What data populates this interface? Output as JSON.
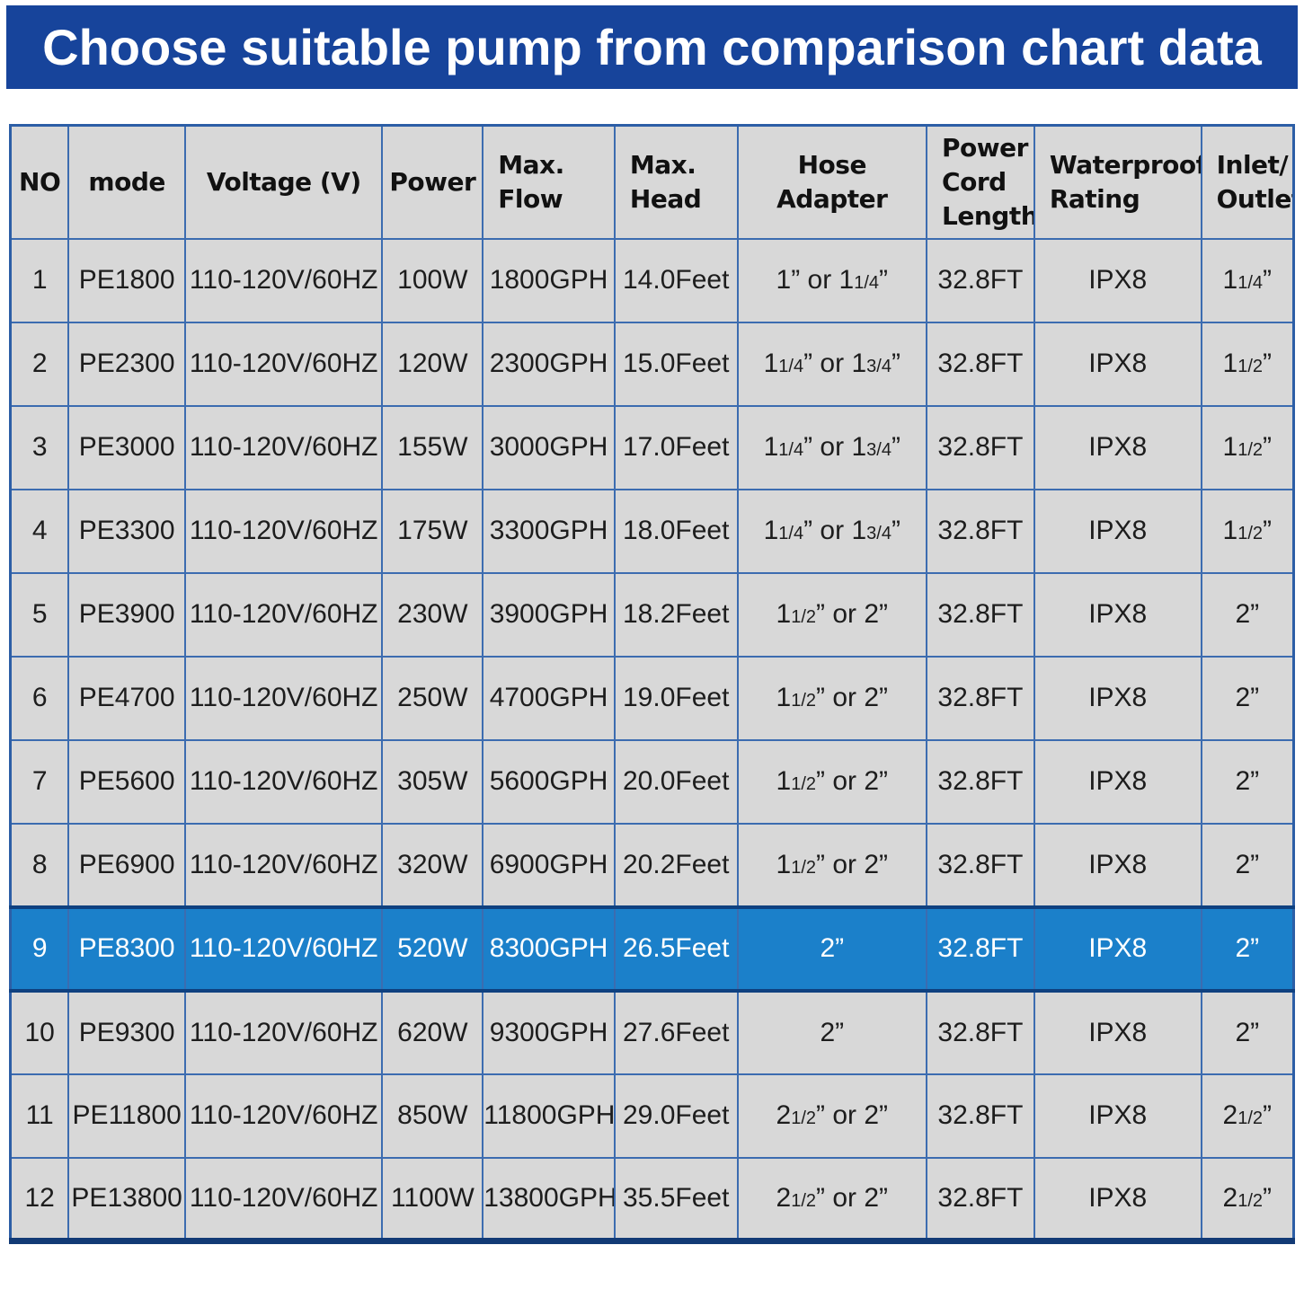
{
  "banner": {
    "title": "Choose suitable pump from comparison chart data"
  },
  "colors": {
    "banner_bg": "#17449b",
    "highlight_bg": "#1b80ca",
    "highlight_border": "#0f4180",
    "cell_bg": "#d8d8d8",
    "grid": "#3c6cb0",
    "outer": "#2c5ea6",
    "bottom": "#123a75"
  },
  "chart_data": {
    "type": "table",
    "title": "Choose suitable pump from comparison chart data",
    "highlight_row_index": 8,
    "columns": [
      {
        "key": "no",
        "label": "NO",
        "width": "4.54%"
      },
      {
        "key": "mode",
        "label": "mode",
        "width": "9.08%"
      },
      {
        "key": "voltage",
        "label": "Voltage (V)",
        "width": "15.37%"
      },
      {
        "key": "power",
        "label": "Power",
        "width": "7.83%"
      },
      {
        "key": "max_flow",
        "label": "Max.\nFlow",
        "width": "10.27%"
      },
      {
        "key": "max_head",
        "label": "Max.\nHead",
        "width": "9.57%"
      },
      {
        "key": "hose_adapter",
        "label": "Hose Adapter",
        "width": "14.74%"
      },
      {
        "key": "cord_length",
        "label": "Power\nCord\nLength",
        "width": "8.39%"
      },
      {
        "key": "waterproof",
        "label": "Waterproof\nRating",
        "width": "13.01%"
      },
      {
        "key": "inlet_outlet",
        "label": "Inlet/\nOutlet",
        "width": "7.20%"
      }
    ],
    "rows": [
      {
        "no": "1",
        "mode": "PE1800",
        "voltage": "110-120V/60HZ",
        "power": "100W",
        "max_flow": "1800GPH",
        "max_head": "14.0Feet",
        "hose_adapter": "1” or 1{1/4}”",
        "cord_length": "32.8FT",
        "waterproof": "IPX8",
        "inlet_outlet": "1{1/4}”"
      },
      {
        "no": "2",
        "mode": "PE2300",
        "voltage": "110-120V/60HZ",
        "power": "120W",
        "max_flow": "2300GPH",
        "max_head": "15.0Feet",
        "hose_adapter": "1{1/4}” or 1{3/4}”",
        "cord_length": "32.8FT",
        "waterproof": "IPX8",
        "inlet_outlet": "1{1/2}”"
      },
      {
        "no": "3",
        "mode": "PE3000",
        "voltage": "110-120V/60HZ",
        "power": "155W",
        "max_flow": "3000GPH",
        "max_head": "17.0Feet",
        "hose_adapter": "1{1/4}” or 1{3/4}”",
        "cord_length": "32.8FT",
        "waterproof": "IPX8",
        "inlet_outlet": "1{1/2}”"
      },
      {
        "no": "4",
        "mode": "PE3300",
        "voltage": "110-120V/60HZ",
        "power": "175W",
        "max_flow": "3300GPH",
        "max_head": "18.0Feet",
        "hose_adapter": "1{1/4}” or 1{3/4}”",
        "cord_length": "32.8FT",
        "waterproof": "IPX8",
        "inlet_outlet": "1{1/2}”"
      },
      {
        "no": "5",
        "mode": "PE3900",
        "voltage": "110-120V/60HZ",
        "power": "230W",
        "max_flow": "3900GPH",
        "max_head": "18.2Feet",
        "hose_adapter": "1{1/2}” or 2”",
        "cord_length": "32.8FT",
        "waterproof": "IPX8",
        "inlet_outlet": "2”"
      },
      {
        "no": "6",
        "mode": "PE4700",
        "voltage": "110-120V/60HZ",
        "power": "250W",
        "max_flow": "4700GPH",
        "max_head": "19.0Feet",
        "hose_adapter": "1{1/2}” or 2”",
        "cord_length": "32.8FT",
        "waterproof": "IPX8",
        "inlet_outlet": "2”"
      },
      {
        "no": "7",
        "mode": "PE5600",
        "voltage": "110-120V/60HZ",
        "power": "305W",
        "max_flow": "5600GPH",
        "max_head": "20.0Feet",
        "hose_adapter": "1{1/2}” or 2”",
        "cord_length": "32.8FT",
        "waterproof": "IPX8",
        "inlet_outlet": "2”"
      },
      {
        "no": "8",
        "mode": "PE6900",
        "voltage": "110-120V/60HZ",
        "power": "320W",
        "max_flow": "6900GPH",
        "max_head": "20.2Feet",
        "hose_adapter": "1{1/2}” or 2”",
        "cord_length": "32.8FT",
        "waterproof": "IPX8",
        "inlet_outlet": "2”"
      },
      {
        "no": "9",
        "mode": "PE8300",
        "voltage": "110-120V/60HZ",
        "power": "520W",
        "max_flow": "8300GPH",
        "max_head": "26.5Feet",
        "hose_adapter": "2”",
        "cord_length": "32.8FT",
        "waterproof": "IPX8",
        "inlet_outlet": "2”"
      },
      {
        "no": "10",
        "mode": "PE9300",
        "voltage": "110-120V/60HZ",
        "power": "620W",
        "max_flow": "9300GPH",
        "max_head": "27.6Feet",
        "hose_adapter": "2”",
        "cord_length": "32.8FT",
        "waterproof": "IPX8",
        "inlet_outlet": "2”"
      },
      {
        "no": "11",
        "mode": "PE11800",
        "voltage": "110-120V/60HZ",
        "power": "850W",
        "max_flow": "11800GPH",
        "max_head": "29.0Feet",
        "hose_adapter": "2{1/2}” or 2”",
        "cord_length": "32.8FT",
        "waterproof": "IPX8",
        "inlet_outlet": "2{1/2}”"
      },
      {
        "no": "12",
        "mode": "PE13800",
        "voltage": "110-120V/60HZ",
        "power": "1100W",
        "max_flow": "13800GPH",
        "max_head": "35.5Feet",
        "hose_adapter": "2{1/2}” or 2”",
        "cord_length": "32.8FT",
        "waterproof": "IPX8",
        "inlet_outlet": "2{1/2}”"
      }
    ]
  }
}
